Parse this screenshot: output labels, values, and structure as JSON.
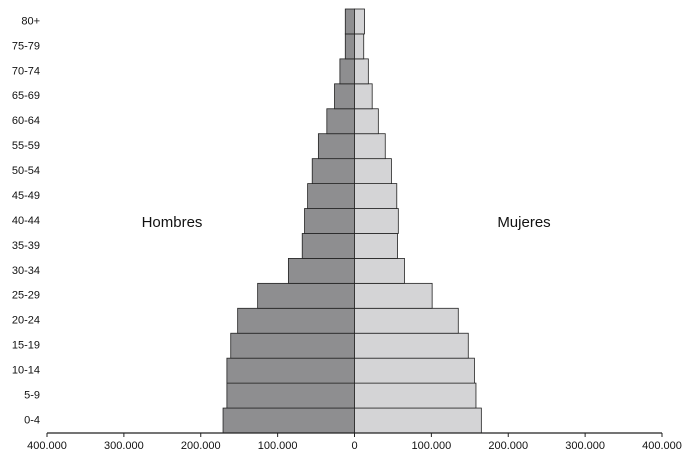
{
  "chart_data": {
    "type": "pyramid",
    "categories": [
      "0-4",
      "5-9",
      "10-14",
      "15-19",
      "20-24",
      "25-29",
      "30-34",
      "35-39",
      "40-44",
      "45-49",
      "50-54",
      "55-59",
      "60-64",
      "65-69",
      "70-74",
      "75-79",
      "80+"
    ],
    "series": [
      {
        "name": "Hombres",
        "color": "#8e8e90",
        "values": [
          171000,
          166000,
          166000,
          161000,
          152000,
          126000,
          86000,
          68000,
          65000,
          61000,
          55000,
          47000,
          36000,
          26000,
          19000,
          12000,
          12000
        ]
      },
      {
        "name": "Mujeres",
        "color": "#d4d4d6",
        "values": [
          165000,
          158000,
          156000,
          148000,
          135000,
          101000,
          65000,
          56000,
          57000,
          55000,
          48000,
          40000,
          31000,
          23000,
          18000,
          12000,
          13000
        ]
      }
    ],
    "xlim": [
      -400000,
      400000
    ],
    "xticks": [
      {
        "value": -400000,
        "label": "400.000"
      },
      {
        "value": -300000,
        "label": "300.000"
      },
      {
        "value": -200000,
        "label": "200.000"
      },
      {
        "value": -100000,
        "label": "100.000"
      },
      0,
      {
        "value": 100000,
        "label": "100.000"
      },
      {
        "value": 200000,
        "label": "200.000"
      },
      {
        "value": 300000,
        "label": "300.000"
      },
      {
        "value": 400000,
        "label": "400.000"
      }
    ]
  }
}
